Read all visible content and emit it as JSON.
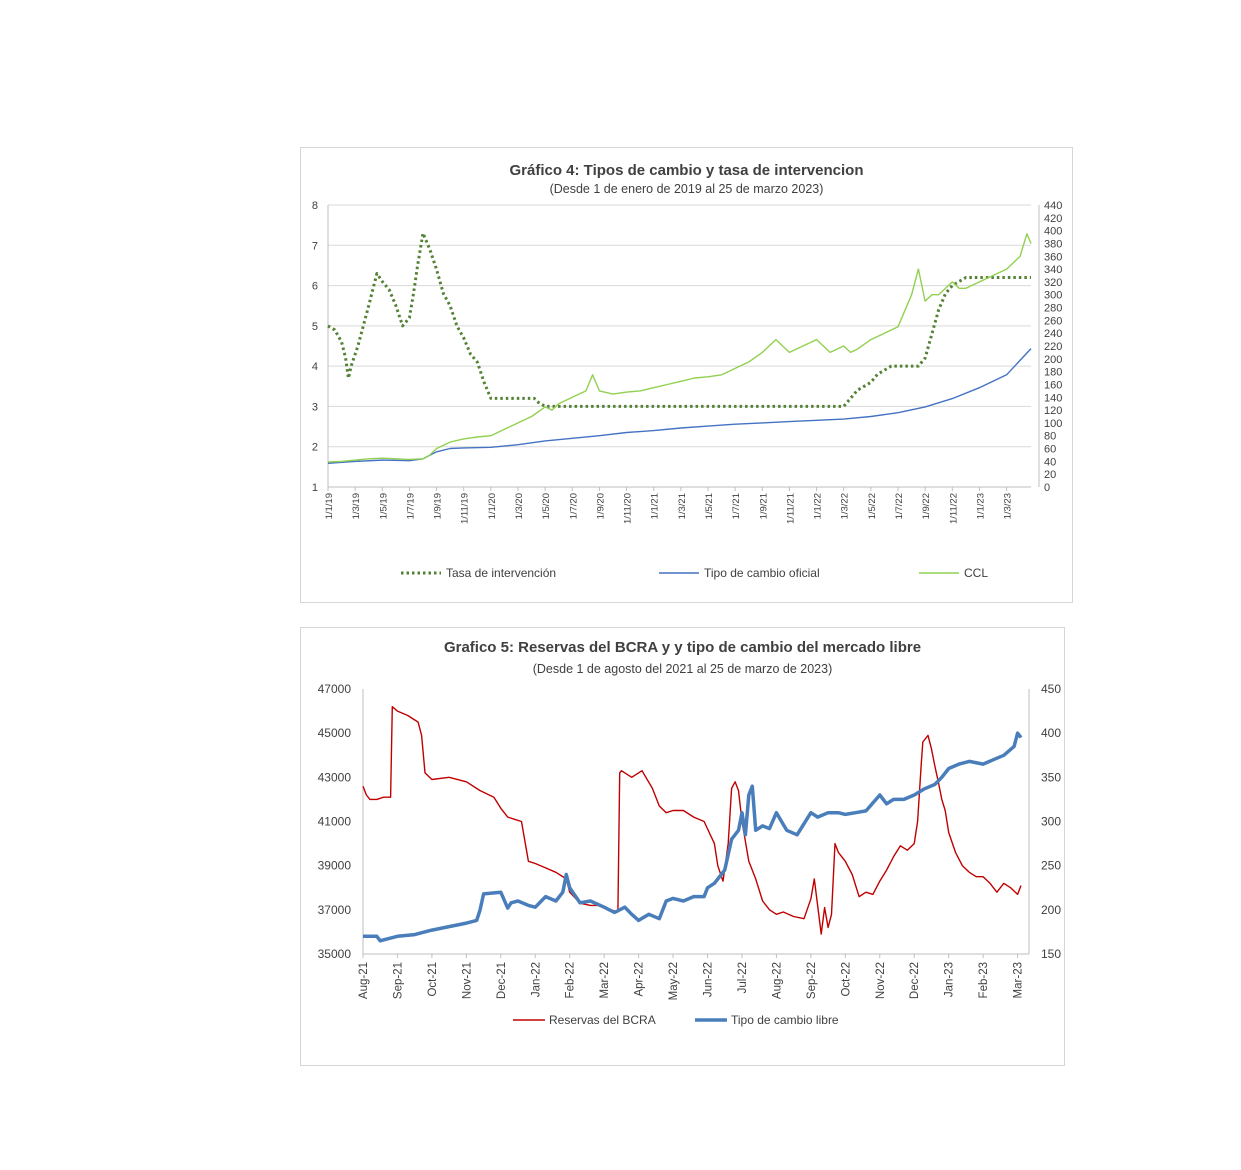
{
  "chart_data": [
    {
      "type": "line",
      "title": "Gráfico 4: Tipos de cambio y tasa de intervencion",
      "subtitle": "(Desde 1 de enero de 2019 al 25 de marzo 2023)",
      "x_ticks": [
        "1/1/19",
        "1/3/19",
        "1/5/19",
        "1/7/19",
        "1/9/19",
        "1/11/19",
        "1/1/20",
        "1/3/20",
        "1/5/20",
        "1/7/20",
        "1/9/20",
        "1/11/20",
        "1/1/21",
        "1/3/21",
        "1/5/21",
        "1/7/21",
        "1/9/21",
        "1/11/21",
        "1/1/22",
        "1/3/22",
        "1/5/22",
        "1/7/22",
        "1/9/22",
        "1/11/22",
        "1/1/23",
        "1/3/23"
      ],
      "y_left": {
        "ticks": [
          "1",
          "2",
          "3",
          "4",
          "5",
          "6",
          "7",
          "8"
        ],
        "range": [
          1,
          8
        ]
      },
      "y_right": {
        "ticks": [
          "0",
          "20",
          "40",
          "60",
          "80",
          "100",
          "120",
          "140",
          "160",
          "180",
          "200",
          "220",
          "240",
          "260",
          "280",
          "300",
          "320",
          "340",
          "360",
          "380",
          "400",
          "420",
          "440"
        ],
        "range": [
          0,
          440
        ]
      },
      "grid": true,
      "legend_position": "bottom",
      "series": [
        {
          "name": "Tasa de intervención",
          "axis": "left",
          "style": "dotted",
          "color": "#548235",
          "x_month": [
            0,
            0.5,
            1,
            1.3,
            1.5,
            1.7,
            2.2,
            2.6,
            3,
            3.3,
            3.6,
            4,
            4.5,
            5,
            5.5,
            6,
            6.3,
            6.6,
            7,
            7.5,
            8,
            8.5,
            9,
            9.5,
            10,
            10.5,
            11,
            11.5,
            12,
            12.5,
            13,
            13.5,
            14,
            14.5,
            14.8,
            15.2,
            15.5,
            16,
            16.5,
            17,
            17.5,
            18,
            18.5,
            19,
            19.5,
            20,
            21,
            22,
            23,
            24,
            25,
            26,
            27,
            28,
            29,
            30,
            31,
            32,
            33,
            34,
            35,
            36,
            37,
            38,
            38.5,
            39,
            39.5,
            40,
            40.5,
            41,
            41.5,
            42,
            42.5,
            43,
            43.5,
            44,
            44.5,
            45,
            45.5,
            46,
            46.5,
            47,
            47.5,
            48,
            48.5,
            49,
            49.5,
            50,
            50.5,
            51,
            51.5,
            51.8
          ],
          "values": [
            5,
            4.9,
            4.6,
            4.2,
            3.7,
            4,
            4.5,
            5,
            5.5,
            5.9,
            6.3,
            6.1,
            5.9,
            5.5,
            5,
            5.2,
            5.8,
            6.5,
            7.3,
            6.9,
            6.4,
            5.8,
            5.5,
            5,
            4.7,
            4.3,
            4.1,
            3.6,
            3.2,
            3.2,
            3.2,
            3.2,
            3.2,
            3.2,
            3.2,
            3.2,
            3.1,
            3,
            3,
            3,
            3,
            3,
            3,
            3,
            3,
            3,
            3,
            3,
            3,
            3,
            3,
            3,
            3,
            3,
            3,
            3,
            3,
            3,
            3,
            3,
            3,
            3,
            3,
            3,
            3.2,
            3.4,
            3.5,
            3.6,
            3.8,
            3.9,
            4,
            4,
            4,
            4,
            4,
            4.2,
            4.8,
            5.4,
            5.8,
            6,
            6.1,
            6.2,
            6.2,
            6.2,
            6.2,
            6.2,
            6.2,
            6.2,
            6.2,
            6.2,
            6.2,
            6.2
          ]
        },
        {
          "name": "Tipo de cambio oficial",
          "axis": "right",
          "style": "solid",
          "color": "#4472c4",
          "x_month": [
            0,
            2,
            4,
            6,
            7,
            8,
            9,
            10,
            12,
            14,
            16,
            18,
            20,
            22,
            24,
            26,
            28,
            30,
            32,
            34,
            36,
            38,
            40,
            42,
            44,
            46,
            48,
            50,
            51.8
          ],
          "values": [
            37,
            40,
            42,
            41,
            44,
            55,
            60,
            61,
            62,
            66,
            72,
            76,
            80,
            85,
            88,
            92,
            95,
            98,
            100,
            102,
            104,
            106,
            110,
            116,
            125,
            138,
            155,
            175,
            216
          ]
        },
        {
          "name": "CCL",
          "axis": "right",
          "style": "solid",
          "color": "#92d050",
          "x_month": [
            0,
            1,
            2,
            3,
            4,
            5,
            6,
            7,
            7.5,
            8,
            9,
            10,
            11,
            12,
            13,
            14,
            15,
            16,
            16.5,
            17,
            18,
            19,
            19.5,
            20,
            21,
            22,
            23,
            24,
            25,
            26,
            27,
            28,
            29,
            29.5,
            30,
            31,
            32,
            32.5,
            33,
            34,
            35,
            36,
            37,
            38,
            38.5,
            39,
            40,
            41,
            42,
            43,
            43.5,
            44,
            44.5,
            45,
            46,
            46.5,
            47,
            48,
            49,
            50,
            50.5,
            51,
            51.5,
            51.8
          ],
          "values": [
            39,
            40,
            42,
            44,
            45,
            44,
            43,
            44,
            50,
            60,
            70,
            75,
            78,
            80,
            90,
            100,
            110,
            125,
            120,
            130,
            140,
            150,
            175,
            150,
            145,
            148,
            150,
            155,
            160,
            165,
            170,
            172,
            175,
            180,
            185,
            195,
            210,
            220,
            230,
            210,
            220,
            230,
            210,
            220,
            210,
            215,
            230,
            240,
            250,
            300,
            340,
            290,
            300,
            300,
            320,
            310,
            310,
            320,
            330,
            340,
            350,
            360,
            395,
            380
          ]
        }
      ]
    },
    {
      "type": "line",
      "title": "Grafico 5: Reservas del BCRA y y tipo de cambio del mercado libre",
      "subtitle": "(Desde 1 de agosto del 2021 al 25 de marzo de 2023)",
      "x_ticks": [
        "Aug-21",
        "Sep-21",
        "Oct-21",
        "Nov-21",
        "Dec-21",
        "Jan-22",
        "Feb-22",
        "Mar-22",
        "Apr-22",
        "May-22",
        "Jun-22",
        "Jul-22",
        "Aug-22",
        "Sep-22",
        "Oct-22",
        "Nov-22",
        "Dec-22",
        "Jan-23",
        "Feb-23",
        "Mar-23"
      ],
      "y_left": {
        "ticks": [
          "35000",
          "37000",
          "39000",
          "41000",
          "43000",
          "45000",
          "47000"
        ],
        "range": [
          35000,
          47000
        ]
      },
      "y_right": {
        "ticks": [
          "150",
          "200",
          "250",
          "300",
          "350",
          "400",
          "450"
        ],
        "range": [
          150,
          450
        ]
      },
      "grid": false,
      "legend_position": "bottom",
      "series": [
        {
          "name": "Reservas del BCRA",
          "axis": "left",
          "color": "#c00000",
          "x_month": [
            0,
            0.1,
            0.2,
            0.4,
            0.6,
            0.8,
            0.85,
            1,
            1.3,
            1.6,
            1.7,
            1.8,
            2,
            2.5,
            3,
            3.4,
            3.8,
            4,
            4.2,
            4.4,
            4.6,
            4.8,
            5,
            5.3,
            5.6,
            5.9,
            6,
            6.3,
            6.6,
            6.9,
            7.2,
            7.4,
            7.45,
            7.5,
            7.8,
            8.1,
            8.4,
            8.6,
            8.8,
            9,
            9.3,
            9.6,
            9.9,
            10.2,
            10.3,
            10.45,
            10.6,
            10.7,
            10.8,
            10.9,
            11,
            11.2,
            11.4,
            11.6,
            11.8,
            12,
            12.2,
            12.5,
            12.8,
            13,
            13.1,
            13.3,
            13.4,
            13.5,
            13.6,
            13.7,
            13.8,
            14,
            14.2,
            14.4,
            14.6,
            14.8,
            15,
            15.2,
            15.4,
            15.6,
            15.8,
            16,
            16.1,
            16.2,
            16.25,
            16.4,
            16.5,
            16.6,
            16.7,
            16.8,
            16.9,
            17,
            17.2,
            17.4,
            17.6,
            17.8,
            18,
            18.2,
            18.4,
            18.6,
            18.8,
            19,
            19.1
          ],
          "values": [
            42600,
            42200,
            42000,
            42000,
            42100,
            42100,
            46200,
            46000,
            45800,
            45500,
            44900,
            43200,
            42900,
            43000,
            42800,
            42400,
            42100,
            41600,
            41200,
            41100,
            41000,
            39200,
            39100,
            38900,
            38700,
            38400,
            37800,
            37300,
            37200,
            37200,
            37000,
            36900,
            43200,
            43300,
            43000,
            43300,
            42500,
            41700,
            41400,
            41500,
            41500,
            41200,
            41000,
            40000,
            39000,
            38300,
            40000,
            42500,
            42800,
            42400,
            41000,
            39200,
            38400,
            37400,
            37000,
            36800,
            36900,
            36700,
            36600,
            37500,
            38400,
            35900,
            37100,
            36200,
            36800,
            40000,
            39600,
            39200,
            38600,
            37600,
            37800,
            37700,
            38300,
            38800,
            39400,
            39900,
            39700,
            40000,
            41000,
            43500,
            44600,
            44900,
            44300,
            43500,
            42800,
            42000,
            41500,
            40500,
            39600,
            39000,
            38700,
            38500,
            38500,
            38200,
            37800,
            38200,
            38000,
            37700,
            38100
          ]
        },
        {
          "name": "Tipo de cambio libre",
          "axis": "right",
          "color": "#4a7ebb",
          "x_month": [
            0,
            0.4,
            0.5,
            0.8,
            1,
            1.5,
            2,
            2.5,
            3,
            3.3,
            3.4,
            3.5,
            4,
            4.2,
            4.3,
            4.5,
            4.8,
            5,
            5.3,
            5.6,
            5.8,
            5.9,
            6,
            6.3,
            6.6,
            7,
            7.3,
            7.6,
            7.8,
            8,
            8.3,
            8.6,
            8.8,
            9,
            9.3,
            9.6,
            9.9,
            10,
            10.2,
            10.4,
            10.5,
            10.7,
            10.9,
            11,
            11.1,
            11.2,
            11.3,
            11.4,
            11.6,
            11.8,
            12,
            12.3,
            12.6,
            13,
            13.2,
            13.5,
            13.8,
            14,
            14.3,
            14.6,
            15,
            15.2,
            15.4,
            15.7,
            16,
            16.3,
            16.6,
            16.8,
            17,
            17.3,
            17.6,
            18,
            18.3,
            18.6,
            18.9,
            19,
            19.1
          ],
          "values": [
            170,
            170,
            165,
            168,
            170,
            172,
            177,
            181,
            185,
            188,
            200,
            218,
            220,
            202,
            208,
            210,
            205,
            203,
            215,
            210,
            220,
            240,
            225,
            208,
            210,
            203,
            197,
            203,
            195,
            188,
            195,
            190,
            210,
            213,
            210,
            215,
            215,
            225,
            230,
            240,
            245,
            280,
            290,
            310,
            285,
            330,
            340,
            290,
            295,
            292,
            310,
            290,
            285,
            310,
            305,
            310,
            310,
            308,
            310,
            312,
            330,
            320,
            325,
            325,
            330,
            337,
            342,
            350,
            360,
            365,
            368,
            365,
            370,
            375,
            385,
            400,
            395
          ]
        }
      ]
    }
  ]
}
